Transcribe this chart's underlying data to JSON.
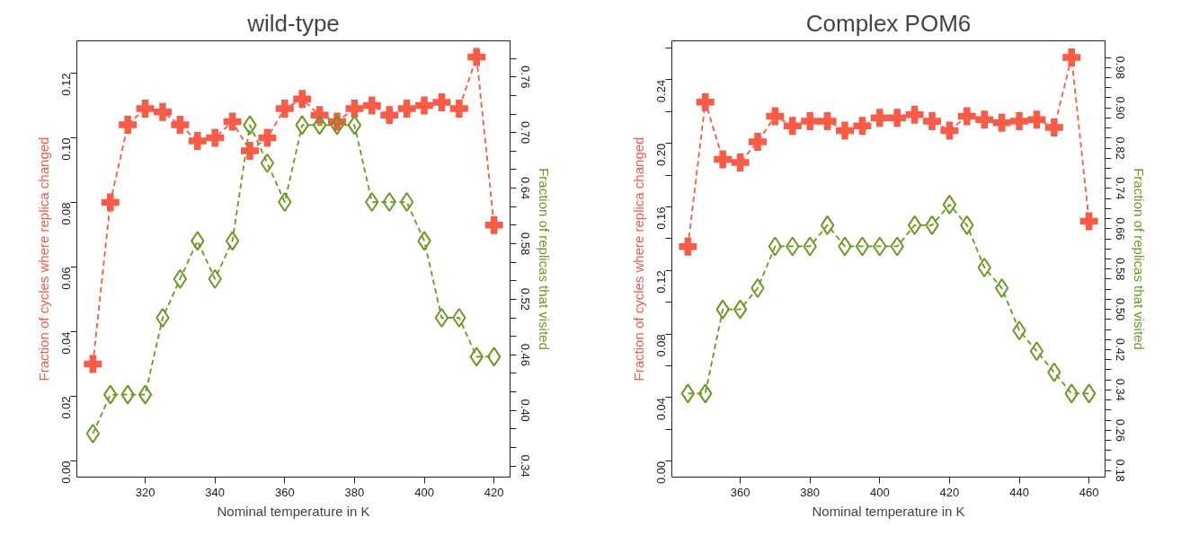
{
  "chart_data": [
    {
      "type": "line",
      "title": "wild-type",
      "xlabel": "Nominal temperature in K",
      "ylabel": "Fraction of cycles where replica changed",
      "y2label": "Fraction of replicas that visited",
      "x": [
        305,
        310,
        315,
        320,
        325,
        330,
        335,
        340,
        345,
        350,
        355,
        360,
        365,
        370,
        375,
        380,
        385,
        390,
        395,
        400,
        405,
        410,
        415,
        420
      ],
      "xlim": [
        300.4,
        424.6
      ],
      "xticks": [
        320,
        340,
        360,
        380,
        400,
        420
      ],
      "ylim": [
        -0.005,
        0.13
      ],
      "yticks": [
        {
          "value": 0,
          "label": "0.00"
        },
        {
          "value": 0.02,
          "label": "0.02"
        },
        {
          "value": 0.04,
          "label": "0.04"
        },
        {
          "value": 0.06,
          "label": "0.06"
        },
        {
          "value": 0.08,
          "label": "0.08"
        },
        {
          "value": 0.1,
          "label": "0.10"
        },
        {
          "value": 0.12,
          "label": "0.12"
        }
      ],
      "y2lim": [
        0.328,
        0.799
      ],
      "y2ticks": [
        {
          "value": 0.34,
          "label": "0.34"
        },
        {
          "value": 0.36,
          "label": null
        },
        {
          "value": 0.38,
          "label": null
        },
        {
          "value": 0.4,
          "label": "0.40"
        },
        {
          "value": 0.42,
          "label": null
        },
        {
          "value": 0.44,
          "label": null
        },
        {
          "value": 0.46,
          "label": "0.46"
        },
        {
          "value": 0.48,
          "label": null
        },
        {
          "value": 0.5,
          "label": null
        },
        {
          "value": 0.52,
          "label": "0.52"
        },
        {
          "value": 0.54,
          "label": null
        },
        {
          "value": 0.56,
          "label": null
        },
        {
          "value": 0.58,
          "label": "0.58"
        },
        {
          "value": 0.6,
          "label": null
        },
        {
          "value": 0.62,
          "label": null
        },
        {
          "value": 0.64,
          "label": "0.64"
        },
        {
          "value": 0.66,
          "label": null
        },
        {
          "value": 0.68,
          "label": null
        },
        {
          "value": 0.7,
          "label": "0.70"
        },
        {
          "value": 0.72,
          "label": null
        },
        {
          "value": 0.74,
          "label": null
        },
        {
          "value": 0.76,
          "label": "0.76"
        },
        {
          "value": 0.78,
          "label": null
        }
      ],
      "grid": false,
      "line_style": "dashed",
      "series": [
        {
          "color": "#fa5a46",
          "marker": "cross",
          "values": [
            0.03,
            0.08,
            0.104,
            0.109,
            0.108,
            0.104,
            0.099,
            0.1,
            0.105,
            0.096,
            0.1,
            0.109,
            0.112,
            0.107,
            0.105,
            0.109,
            0.11,
            0.107,
            0.109,
            0.11,
            0.111,
            0.109,
            0.125,
            0.073
          ]
        },
        {
          "color": "#6a9a1f",
          "marker": "diamond",
          "axis": "y2",
          "values": [
            0.375,
            0.417,
            0.417,
            0.417,
            0.5,
            0.542,
            0.583,
            0.542,
            0.583,
            0.708,
            0.667,
            0.625,
            0.708,
            0.708,
            0.708,
            0.708,
            0.625,
            0.625,
            0.625,
            0.583,
            0.5,
            0.5,
            0.458,
            0.458
          ]
        }
      ]
    },
    {
      "type": "line",
      "title": "Complex POM6",
      "xlabel": "Nominal temperature in K",
      "ylabel": "Fraction of cycles where replica changed",
      "y2label": "Fraction of replicas that visited",
      "x": [
        345,
        350,
        355,
        360,
        365,
        370,
        375,
        380,
        385,
        390,
        395,
        400,
        405,
        410,
        415,
        420,
        425,
        430,
        435,
        440,
        445,
        450,
        455,
        460
      ],
      "xlim": [
        340.4,
        464.6
      ],
      "xticks": [
        360,
        380,
        400,
        420,
        440,
        460
      ],
      "ylim": [
        -0.01,
        0.2645
      ],
      "yticks": [
        {
          "value": 0,
          "label": "0.00"
        },
        {
          "value": 0.02,
          "label": null
        },
        {
          "value": 0.04,
          "label": "0.04"
        },
        {
          "value": 0.06,
          "label": null
        },
        {
          "value": 0.08,
          "label": "0.08"
        },
        {
          "value": 0.1,
          "label": null
        },
        {
          "value": 0.12,
          "label": "0.12"
        },
        {
          "value": 0.14,
          "label": null
        },
        {
          "value": 0.16,
          "label": "0.16"
        },
        {
          "value": 0.18,
          "label": null
        },
        {
          "value": 0.2,
          "label": "0.20"
        },
        {
          "value": 0.22,
          "label": null
        },
        {
          "value": 0.24,
          "label": "0.24"
        },
        {
          "value": 0.26,
          "label": null
        }
      ],
      "y2lim": [
        0.167,
        1.033
      ],
      "y2ticks": [
        {
          "value": 0.18,
          "label": "0.18"
        },
        {
          "value": 0.2,
          "label": null
        },
        {
          "value": 0.22,
          "label": null
        },
        {
          "value": 0.24,
          "label": null
        },
        {
          "value": 0.26,
          "label": "0.26"
        },
        {
          "value": 0.28,
          "label": null
        },
        {
          "value": 0.3,
          "label": null
        },
        {
          "value": 0.32,
          "label": null
        },
        {
          "value": 0.34,
          "label": "0.34"
        },
        {
          "value": 0.36,
          "label": null
        },
        {
          "value": 0.38,
          "label": null
        },
        {
          "value": 0.4,
          "label": null
        },
        {
          "value": 0.42,
          "label": "0.42"
        },
        {
          "value": 0.44,
          "label": null
        },
        {
          "value": 0.46,
          "label": null
        },
        {
          "value": 0.48,
          "label": null
        },
        {
          "value": 0.5,
          "label": "0.50"
        },
        {
          "value": 0.52,
          "label": null
        },
        {
          "value": 0.54,
          "label": null
        },
        {
          "value": 0.56,
          "label": null
        },
        {
          "value": 0.58,
          "label": "0.58"
        },
        {
          "value": 0.6,
          "label": null
        },
        {
          "value": 0.62,
          "label": null
        },
        {
          "value": 0.64,
          "label": null
        },
        {
          "value": 0.66,
          "label": "0.66"
        },
        {
          "value": 0.68,
          "label": null
        },
        {
          "value": 0.7,
          "label": null
        },
        {
          "value": 0.72,
          "label": null
        },
        {
          "value": 0.74,
          "label": "0.74"
        },
        {
          "value": 0.76,
          "label": null
        },
        {
          "value": 0.78,
          "label": null
        },
        {
          "value": 0.8,
          "label": null
        },
        {
          "value": 0.82,
          "label": "0.82"
        },
        {
          "value": 0.84,
          "label": null
        },
        {
          "value": 0.86,
          "label": null
        },
        {
          "value": 0.88,
          "label": null
        },
        {
          "value": 0.9,
          "label": "0.90"
        },
        {
          "value": 0.92,
          "label": null
        },
        {
          "value": 0.94,
          "label": null
        },
        {
          "value": 0.96,
          "label": null
        },
        {
          "value": 0.98,
          "label": "0.98"
        },
        {
          "value": 1.0,
          "label": null
        }
      ],
      "grid": false,
      "line_style": "dashed",
      "series": [
        {
          "color": "#fa5a46",
          "marker": "cross",
          "values": [
            0.135,
            0.226,
            0.19,
            0.188,
            0.201,
            0.217,
            0.211,
            0.214,
            0.214,
            0.208,
            0.211,
            0.216,
            0.216,
            0.218,
            0.214,
            0.208,
            0.217,
            0.215,
            0.213,
            0.214,
            0.215,
            0.21,
            0.254,
            0.151
          ]
        },
        {
          "color": "#6a9a1f",
          "marker": "diamond",
          "axis": "y2",
          "values": [
            0.333,
            0.333,
            0.5,
            0.5,
            0.542,
            0.625,
            0.625,
            0.625,
            0.667,
            0.625,
            0.625,
            0.625,
            0.625,
            0.667,
            0.667,
            0.708,
            0.667,
            0.583,
            0.542,
            0.458,
            0.417,
            0.375,
            0.333,
            0.333
          ]
        }
      ]
    }
  ]
}
